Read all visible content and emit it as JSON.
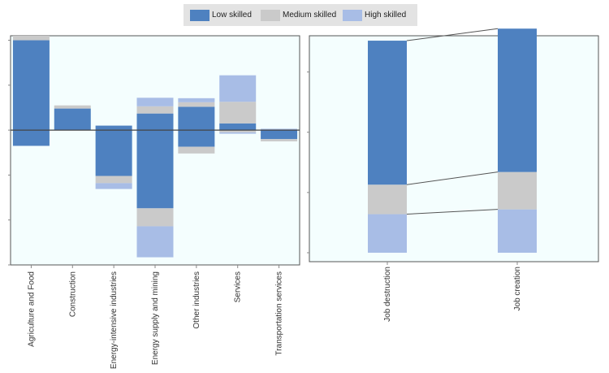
{
  "legend": {
    "items": [
      {
        "label": "Low skilled",
        "color": "#4e81c0"
      },
      {
        "label": "Medium skilled",
        "color": "#cacaca"
      },
      {
        "label": "High skilled",
        "color": "#a8bde6"
      }
    ]
  },
  "colors": {
    "low": "#4e81c0",
    "medium": "#cacaca",
    "high": "#a8bde6",
    "plot_bg": "#f4fefe",
    "frame": "#555555"
  },
  "chart_data": [
    {
      "type": "bar",
      "stacked": true,
      "categories": [
        "Agriculture and Food",
        "Construction",
        "Energy-intensive industries",
        "Energy supply and mining",
        "Other industries",
        "Services",
        "Transportation services"
      ],
      "series": [
        {
          "name": "Low skilled",
          "positive": [
            2.0,
            0.48,
            0.1,
            0.37,
            0.52,
            0.15,
            0.0
          ],
          "negative": [
            -0.35,
            0.0,
            -1.02,
            -1.74,
            -0.37,
            0.0,
            -0.2
          ]
        },
        {
          "name": "Medium skilled",
          "positive": [
            0.1,
            0.07,
            0.0,
            0.16,
            0.1,
            0.48,
            0.0
          ],
          "negative": [
            0.0,
            0.0,
            -0.16,
            -0.4,
            -0.15,
            -0.05,
            -0.05
          ]
        },
        {
          "name": "High skilled",
          "positive": [
            0.0,
            0.0,
            0.0,
            0.19,
            0.09,
            0.59,
            0.03
          ],
          "negative": [
            0.0,
            0.0,
            -0.13,
            -0.69,
            0.0,
            -0.03,
            0.0
          ]
        }
      ],
      "ylim": [
        -3,
        2.1
      ],
      "grid": false,
      "xlabel": "",
      "ylabel": ""
    },
    {
      "type": "bar",
      "stacked": true,
      "categories": [
        "Job destruction",
        "Job creation"
      ],
      "series": [
        {
          "name": "Low skilled",
          "values": [
            2.39,
            2.38
          ]
        },
        {
          "name": "Medium skilled",
          "values": [
            0.49,
            0.62
          ]
        },
        {
          "name": "High skilled",
          "values": [
            0.64,
            0.72
          ]
        }
      ],
      "connectors": true,
      "ylim": [
        0,
        3.75
      ],
      "grid": false,
      "xlabel": "",
      "ylabel": ""
    }
  ]
}
